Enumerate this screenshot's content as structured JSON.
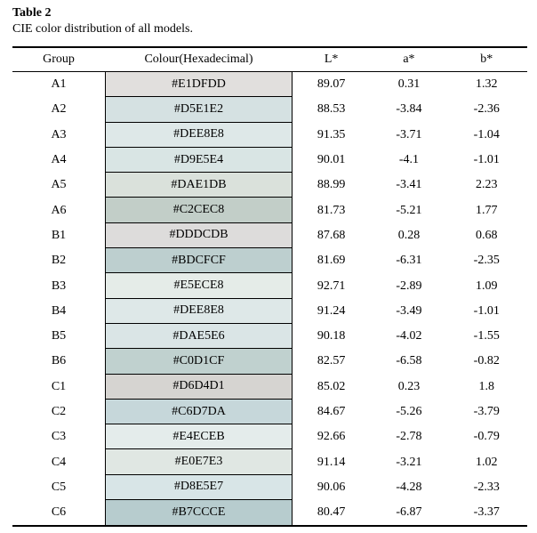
{
  "title": "Table 2",
  "caption": "CIE color distribution of all models.",
  "table": {
    "columns": [
      "Group",
      "Colour(Hexadecimal)",
      "L*",
      "a*",
      "b*"
    ],
    "rows": [
      {
        "group": "A1",
        "hex": "#E1DFDD",
        "L": "89.07",
        "a": "0.31",
        "b": "1.32"
      },
      {
        "group": "A2",
        "hex": "#D5E1E2",
        "L": "88.53",
        "a": "-3.84",
        "b": "-2.36"
      },
      {
        "group": "A3",
        "hex": "#DEE8E8",
        "L": "91.35",
        "a": "-3.71",
        "b": "-1.04"
      },
      {
        "group": "A4",
        "hex": "#D9E5E4",
        "L": "90.01",
        "a": "-4.1",
        "b": "-1.01"
      },
      {
        "group": "A5",
        "hex": "#DAE1DB",
        "L": "88.99",
        "a": "-3.41",
        "b": "2.23"
      },
      {
        "group": "A6",
        "hex": "#C2CEC8",
        "L": "81.73",
        "a": "-5.21",
        "b": "1.77"
      },
      {
        "group": "B1",
        "hex": "#DDDCDB",
        "L": "87.68",
        "a": "0.28",
        "b": "0.68"
      },
      {
        "group": "B2",
        "hex": "#BDCFCF",
        "L": "81.69",
        "a": "-6.31",
        "b": "-2.35"
      },
      {
        "group": "B3",
        "hex": "#E5ECE8",
        "L": "92.71",
        "a": "-2.89",
        "b": "1.09"
      },
      {
        "group": "B4",
        "hex": "#DEE8E8",
        "L": "91.24",
        "a": "-3.49",
        "b": "-1.01"
      },
      {
        "group": "B5",
        "hex": "#DAE5E6",
        "L": "90.18",
        "a": "-4.02",
        "b": "-1.55"
      },
      {
        "group": "B6",
        "hex": "#C0D1CF",
        "L": "82.57",
        "a": "-6.58",
        "b": "-0.82"
      },
      {
        "group": "C1",
        "hex": "#D6D4D1",
        "L": "85.02",
        "a": "0.23",
        "b": "1.8"
      },
      {
        "group": "C2",
        "hex": "#C6D7DA",
        "L": "84.67",
        "a": "-5.26",
        "b": "-3.79"
      },
      {
        "group": "C3",
        "hex": "#E4ECEB",
        "L": "92.66",
        "a": "-2.78",
        "b": "-0.79"
      },
      {
        "group": "C4",
        "hex": "#E0E7E3",
        "L": "91.14",
        "a": "-3.21",
        "b": "1.02"
      },
      {
        "group": "C5",
        "hex": "#D8E5E7",
        "L": "90.06",
        "a": "-4.28",
        "b": "-2.33"
      },
      {
        "group": "C6",
        "hex": "#B7CCCE",
        "L": "80.47",
        "a": "-6.87",
        "b": "-3.37"
      }
    ]
  }
}
